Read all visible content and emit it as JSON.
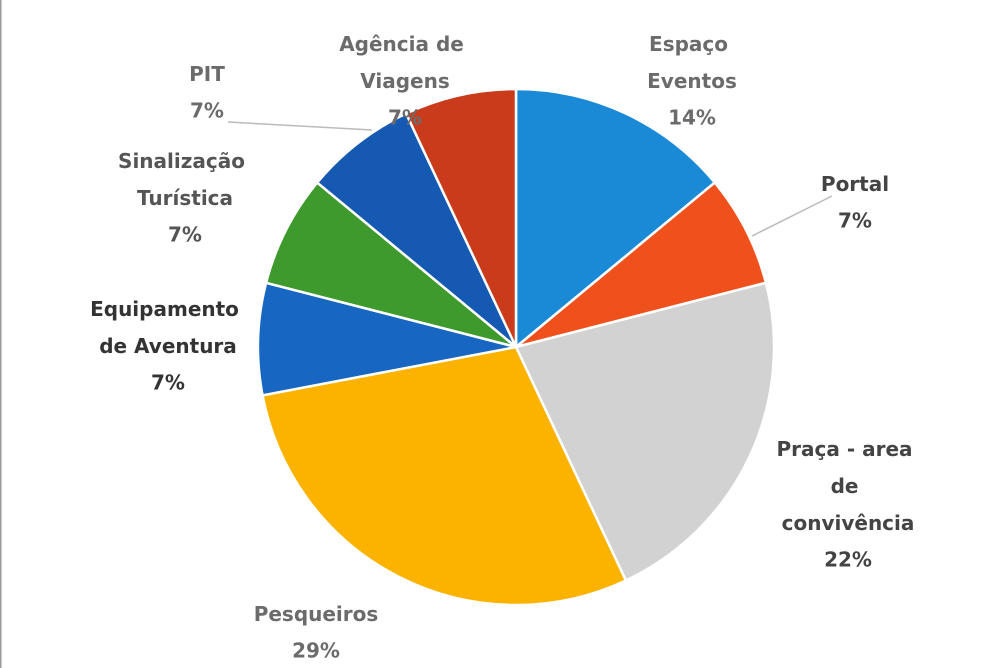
{
  "chart_data": {
    "type": "pie",
    "categories": [
      "Espaço Eventos",
      "Portal",
      "Praça - area de convivência",
      "Pesqueiros",
      "Equipamento de Aventura",
      "Sinalização Turística",
      "PIT",
      "Agência de Viagens"
    ],
    "values": [
      14,
      7,
      22,
      29,
      7,
      7,
      7,
      7
    ],
    "value_labels": [
      "14%",
      "7%",
      "22%",
      "29%",
      "7%",
      "7%",
      "7%",
      "7%"
    ],
    "colors": [
      "#1a8ad6",
      "#f0501c",
      "#d2d2d2",
      "#fbb300",
      "#1766c2",
      "#3e9a2c",
      "#1659b2",
      "#c93b1b"
    ]
  }
}
